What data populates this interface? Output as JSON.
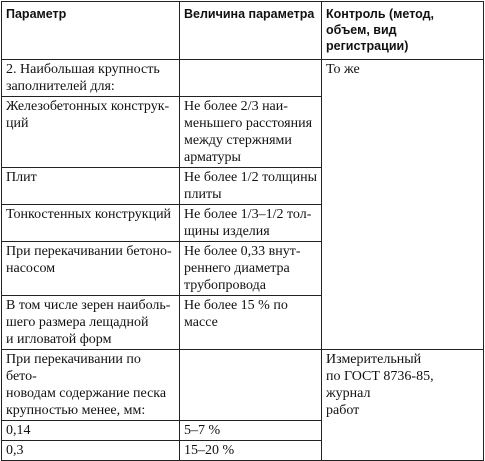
{
  "header": {
    "col1": "Параметр",
    "col2": "Величина параметра",
    "col3": "Контроль (метод, объем, вид регистрации)"
  },
  "rows": [
    {
      "param": "2. Наибольшая крупность\nзаполнителей для:",
      "value": "",
      "control": "То же"
    },
    {
      "param": "Железобетонных конструк-\nций",
      "value": "Не более 2/3 наи-\nменьшего расстояния\nмежду стержнями\nарматуры",
      "control": ""
    },
    {
      "param": "Плит",
      "value": "Не более 1/2 толщины\nплиты",
      "control": ""
    },
    {
      "param": "Тонкостенных конструкций",
      "value": "Не более 1/3–1/2 тол-\nщины изделия",
      "control": ""
    },
    {
      "param": "При перекачивании бетоно-\nнасосом",
      "value": "Не более 0,33 внут-\nреннего диаметра\nтрубопровода",
      "control": ""
    },
    {
      "param": "В том числе зерен наиболь-\nшего размера лещадной\nи игловатой форм",
      "value": "Не более 15 % по массе",
      "control": ""
    },
    {
      "param": "При перекачивании по бето-\nноводам содержание песка\nкрупностью менее, мм:",
      "value": "",
      "control": "Измерительный\nпо ГОСТ 8736-85, журнал\nработ"
    },
    {
      "param": "0,14",
      "value": "5–7 %",
      "control": ""
    },
    {
      "param": "0,3",
      "value": "15–20 %",
      "control": ""
    }
  ]
}
